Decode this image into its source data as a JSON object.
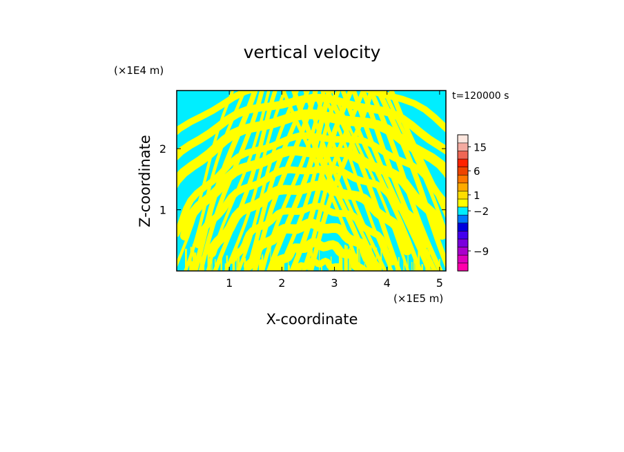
{
  "chart_data": {
    "type": "heatmap",
    "title": "vertical velocity",
    "xlabel": "X-coordinate",
    "ylabel": "Z-coordinate",
    "x_scale_label": "(×1E5 m)",
    "y_scale_label": "(×1E4 m)",
    "time_label": "t=120000  s",
    "xlim": [
      0,
      5.12
    ],
    "ylim": [
      0,
      2.95
    ],
    "x_ticks": [
      {
        "value": 1,
        "label": "1"
      },
      {
        "value": 2,
        "label": "2"
      },
      {
        "value": 3,
        "label": "3"
      },
      {
        "value": 4,
        "label": "4"
      },
      {
        "value": 5,
        "label": "5"
      }
    ],
    "y_ticks": [
      {
        "value": 1,
        "label": "1"
      },
      {
        "value": 2,
        "label": "2"
      }
    ],
    "field_colors": {
      "positive": "#ffff00",
      "negative": "#00eeff"
    },
    "colorbar": {
      "levels": [
        {
          "color": "#ff00aa"
        },
        {
          "color": "#dd00bb"
        },
        {
          "color": "#aa00cc"
        },
        {
          "color": "#7a00dd"
        },
        {
          "color": "#4400ee"
        },
        {
          "color": "#0000dd"
        },
        {
          "color": "#0077ff"
        },
        {
          "color": "#00eeff"
        },
        {
          "color": "#ffff00"
        },
        {
          "color": "#ffdd00"
        },
        {
          "color": "#ffaa00"
        },
        {
          "color": "#ff7700"
        },
        {
          "color": "#ee4400"
        },
        {
          "color": "#ff2200"
        },
        {
          "color": "#ee6655"
        },
        {
          "color": "#f4aaa0"
        },
        {
          "color": "#fde6de"
        }
      ],
      "labels": [
        {
          "label": "15",
          "index": 15
        },
        {
          "label": "6",
          "index": 12
        },
        {
          "label": "1",
          "index": 9
        },
        {
          "label": "−2",
          "index": 7
        },
        {
          "label": "−9",
          "index": 2
        }
      ]
    }
  }
}
